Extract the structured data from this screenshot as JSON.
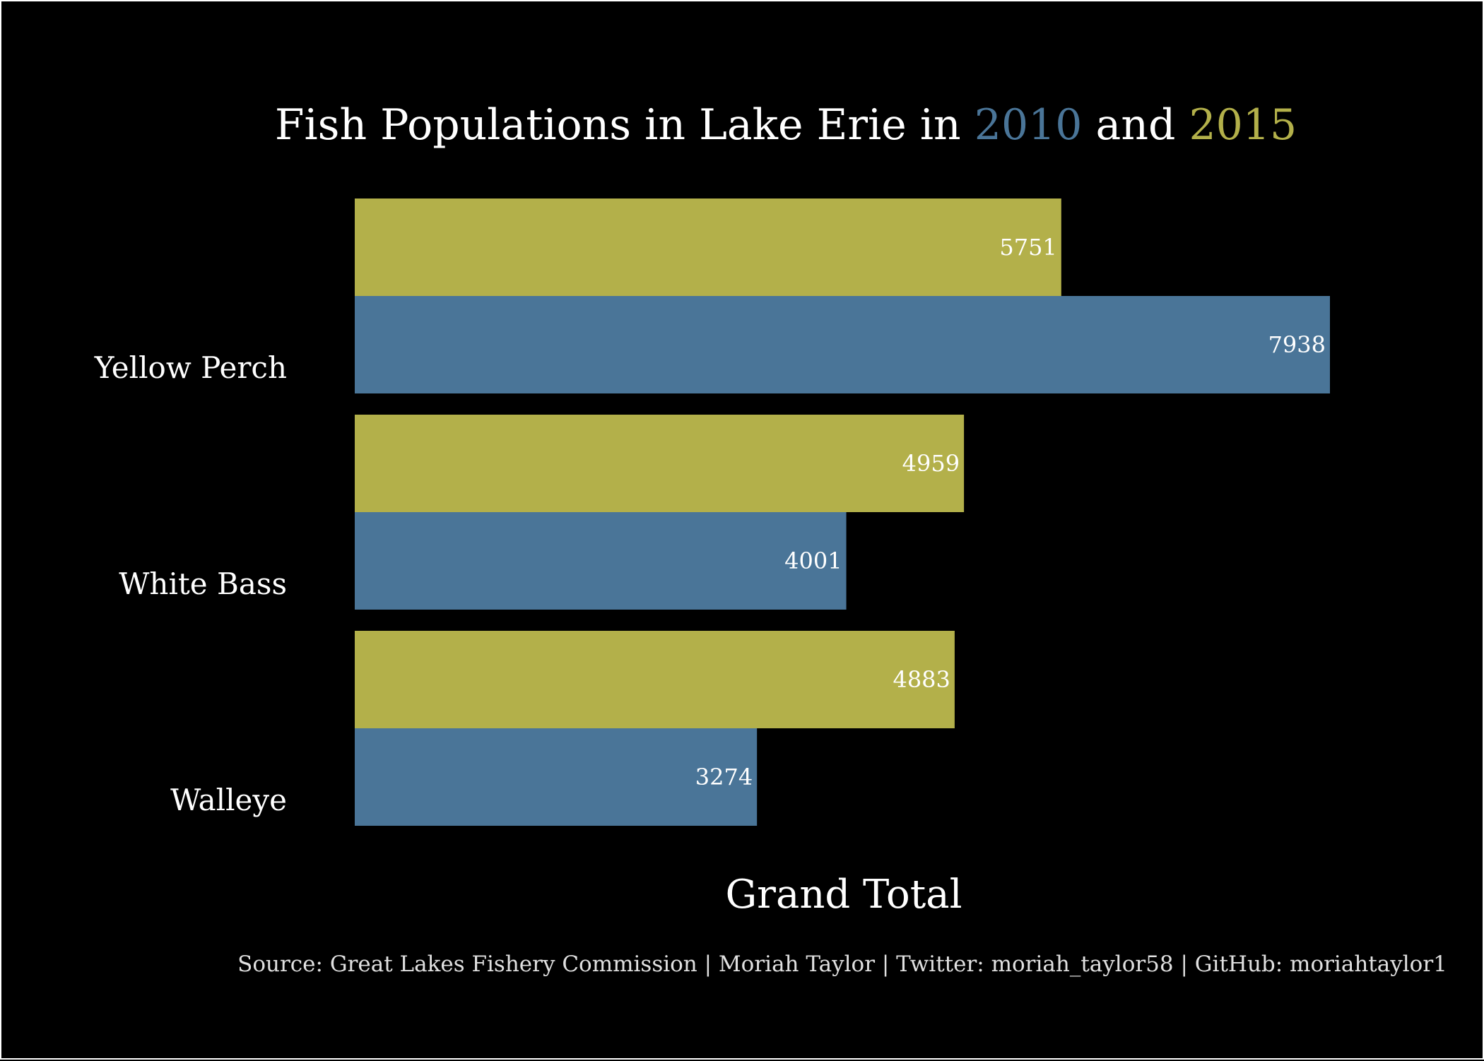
{
  "chart_data": {
    "type": "bar",
    "orientation": "horizontal",
    "title": {
      "parts": [
        {
          "text": "Fish Populations in Lake Erie in ",
          "color": "#ffffff"
        },
        {
          "text": "2010",
          "color": "#4a7598"
        },
        {
          "text": " and ",
          "color": "#ffffff"
        },
        {
          "text": "2015",
          "color": "#b3b04a"
        }
      ]
    },
    "categories": [
      "Yellow Perch",
      "White Bass",
      "Walleye"
    ],
    "series": [
      {
        "name": "2015",
        "color": "#b3b04a",
        "values": [
          5751,
          4959,
          4883
        ]
      },
      {
        "name": "2010",
        "color": "#4a7598",
        "values": [
          7938,
          4001,
          3274
        ]
      }
    ],
    "xlabel": "Grand Total",
    "ylabel": "",
    "xlim": [
      0,
      7938
    ],
    "grid": false,
    "legend": "none",
    "background": "#000000",
    "caption": "Source: Great Lakes Fishery Commission | Moriah Taylor | Twitter: moriah_taylor58 | GitHub: moriahtaylor1"
  }
}
